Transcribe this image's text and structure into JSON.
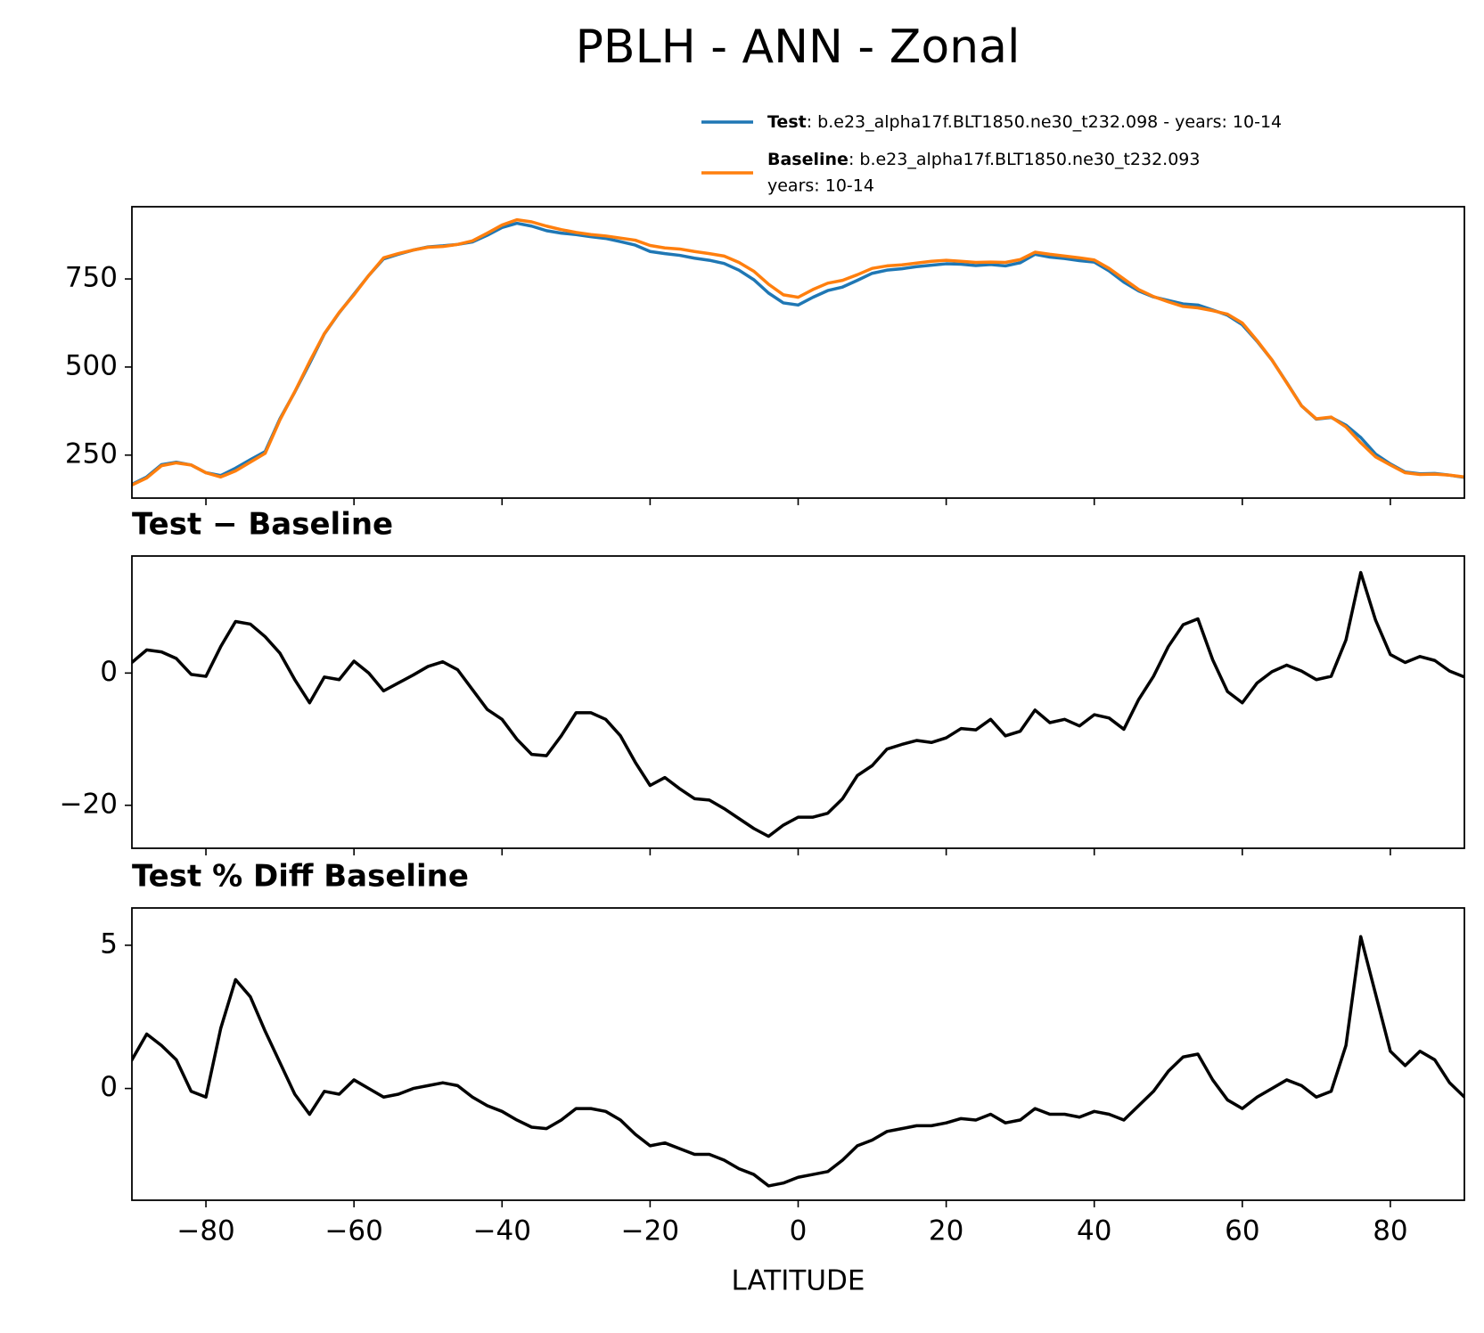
{
  "title": "PBLH - ANN - Zonal",
  "chart_data": [
    {
      "type": "line",
      "x": [
        -90,
        -88,
        -86,
        -84,
        -82,
        -80,
        -78,
        -76,
        -74,
        -72,
        -70,
        -68,
        -66,
        -64,
        -62,
        -60,
        -58,
        -56,
        -54,
        -52,
        -50,
        -48,
        -46,
        -44,
        -42,
        -40,
        -38,
        -36,
        -34,
        -32,
        -30,
        -28,
        -26,
        -24,
        -22,
        -20,
        -18,
        -16,
        -14,
        -12,
        -10,
        -8,
        -6,
        -4,
        -2,
        0,
        2,
        4,
        6,
        8,
        10,
        12,
        14,
        16,
        18,
        20,
        22,
        24,
        26,
        28,
        30,
        32,
        34,
        36,
        38,
        40,
        42,
        44,
        46,
        48,
        50,
        52,
        54,
        56,
        58,
        60,
        62,
        64,
        66,
        68,
        70,
        72,
        74,
        76,
        78,
        80,
        82,
        84,
        86,
        88,
        90
      ],
      "series": [
        {
          "name": "Test",
          "detail": ": b.e23_alpha17f.BLT1850.ne30_t232.098 - years: 10-14",
          "color": "#1f77b4",
          "values": [
            167,
            188,
            223,
            230,
            222,
            200,
            192,
            213,
            237,
            260,
            353,
            429,
            510,
            594,
            654,
            707,
            760,
            807,
            820,
            832,
            841,
            844,
            848,
            855,
            874,
            896,
            908,
            900,
            887,
            880,
            876,
            870,
            865,
            856,
            846,
            828,
            822,
            817,
            809,
            803,
            794,
            775,
            748,
            710,
            682,
            676,
            698,
            717,
            727,
            746,
            766,
            775,
            779,
            785,
            789,
            793,
            792,
            788,
            791,
            787,
            796,
            820,
            812,
            808,
            802,
            798,
            773,
            741,
            716,
            699,
            689,
            679,
            676,
            662,
            647,
            620,
            573,
            520,
            456,
            390,
            352,
            357,
            335,
            300,
            253,
            225,
            202,
            197,
            198,
            193,
            187
          ]
        },
        {
          "name": "Baseline",
          "detail": ": b.e23_alpha17f.BLT1850.ne30_t232.093",
          "detail2": "years: 10-14",
          "color": "#ff7f0e",
          "values": [
            165,
            185,
            220,
            228,
            222,
            200,
            188,
            205,
            230,
            255,
            350,
            430,
            515,
            595,
            655,
            705,
            760,
            810,
            822,
            832,
            840,
            842,
            848,
            858,
            880,
            903,
            918,
            912,
            900,
            890,
            882,
            876,
            872,
            866,
            860,
            845,
            838,
            835,
            828,
            822,
            815,
            797,
            772,
            735,
            705,
            698,
            720,
            738,
            746,
            762,
            780,
            787,
            790,
            795,
            800,
            803,
            800,
            797,
            798,
            797,
            805,
            826,
            820,
            815,
            810,
            804,
            780,
            750,
            720,
            700,
            685,
            672,
            668,
            660,
            650,
            625,
            575,
            520,
            455,
            390,
            353,
            358,
            330,
            285,
            245,
            222,
            200,
            195,
            196,
            193,
            188
          ]
        }
      ],
      "xlim": [
        -90,
        90
      ],
      "xticks": [
        -80,
        -60,
        -40,
        -20,
        0,
        20,
        40,
        60,
        80
      ],
      "show_xticklabels": false,
      "ylim": [
        128,
        955
      ],
      "yticks": [
        250,
        500,
        750
      ]
    },
    {
      "type": "line",
      "title": "Test − Baseline",
      "x": [
        -90,
        -88,
        -86,
        -84,
        -82,
        -80,
        -78,
        -76,
        -74,
        -72,
        -70,
        -68,
        -66,
        -64,
        -62,
        -60,
        -58,
        -56,
        -54,
        -52,
        -50,
        -48,
        -46,
        -44,
        -42,
        -40,
        -38,
        -36,
        -34,
        -32,
        -30,
        -28,
        -26,
        -24,
        -22,
        -20,
        -18,
        -16,
        -14,
        -12,
        -10,
        -8,
        -6,
        -4,
        -2,
        0,
        2,
        4,
        6,
        8,
        10,
        12,
        14,
        16,
        18,
        20,
        22,
        24,
        26,
        28,
        30,
        32,
        34,
        36,
        38,
        40,
        42,
        44,
        46,
        48,
        50,
        52,
        54,
        56,
        58,
        60,
        62,
        64,
        66,
        68,
        70,
        72,
        74,
        76,
        78,
        80,
        82,
        84,
        86,
        88,
        90
      ],
      "series": [
        {
          "color": "#000000",
          "values": [
            1.6,
            3.5,
            3.2,
            2.2,
            -0.2,
            -0.5,
            4.0,
            7.8,
            7.4,
            5.5,
            3.0,
            -1.0,
            -4.5,
            -0.6,
            -1.0,
            1.8,
            0.0,
            -2.7,
            -1.5,
            -0.3,
            1.0,
            1.7,
            0.5,
            -2.5,
            -5.5,
            -7.0,
            -10.0,
            -12.3,
            -12.5,
            -9.5,
            -6.0,
            -6.0,
            -7.0,
            -9.5,
            -13.5,
            -17.0,
            -15.8,
            -17.5,
            -19.0,
            -19.2,
            -20.5,
            -22.0,
            -23.5,
            -24.7,
            -23.0,
            -21.8,
            -21.8,
            -21.2,
            -19.0,
            -15.5,
            -14.0,
            -11.5,
            -10.8,
            -10.2,
            -10.5,
            -9.8,
            -8.4,
            -8.6,
            -7.0,
            -9.5,
            -8.8,
            -5.6,
            -7.5,
            -7.0,
            -8.0,
            -6.3,
            -6.8,
            -8.5,
            -4.0,
            -0.5,
            4.0,
            7.3,
            8.2,
            2.0,
            -2.8,
            -4.5,
            -1.5,
            0.2,
            1.2,
            0.3,
            -1.0,
            -0.5,
            5.0,
            15.2,
            8.0,
            2.8,
            1.6,
            2.5,
            1.9,
            0.3,
            -0.6
          ]
        }
      ],
      "xlim": [
        -90,
        90
      ],
      "xticks": [
        -80,
        -60,
        -40,
        -20,
        0,
        20,
        40,
        60,
        80
      ],
      "show_xticklabels": false,
      "ylim": [
        -26.5,
        17.7
      ],
      "yticks": [
        {
          "value": -20,
          "label": "−20"
        },
        0
      ]
    },
    {
      "type": "line",
      "title": "Test % Diff Baseline",
      "xlabel": "LATITUDE",
      "x": [
        -90,
        -88,
        -86,
        -84,
        -82,
        -80,
        -78,
        -76,
        -74,
        -72,
        -70,
        -68,
        -66,
        -64,
        -62,
        -60,
        -58,
        -56,
        -54,
        -52,
        -50,
        -48,
        -46,
        -44,
        -42,
        -40,
        -38,
        -36,
        -34,
        -32,
        -30,
        -28,
        -26,
        -24,
        -22,
        -20,
        -18,
        -16,
        -14,
        -12,
        -10,
        -8,
        -6,
        -4,
        -2,
        0,
        2,
        4,
        6,
        8,
        10,
        12,
        14,
        16,
        18,
        20,
        22,
        24,
        26,
        28,
        30,
        32,
        34,
        36,
        38,
        40,
        42,
        44,
        46,
        48,
        50,
        52,
        54,
        56,
        58,
        60,
        62,
        64,
        66,
        68,
        70,
        72,
        74,
        76,
        78,
        80,
        82,
        84,
        86,
        88,
        90
      ],
      "series": [
        {
          "color": "#000000",
          "values": [
            1.0,
            1.9,
            1.5,
            1.0,
            -0.1,
            -0.3,
            2.1,
            3.8,
            3.2,
            2.0,
            0.9,
            -0.2,
            -0.9,
            -0.1,
            -0.2,
            0.3,
            0.0,
            -0.3,
            -0.2,
            0.0,
            0.1,
            0.2,
            0.1,
            -0.3,
            -0.6,
            -0.8,
            -1.1,
            -1.35,
            -1.4,
            -1.1,
            -0.7,
            -0.7,
            -0.8,
            -1.1,
            -1.6,
            -2.0,
            -1.9,
            -2.1,
            -2.3,
            -2.3,
            -2.5,
            -2.8,
            -3.0,
            -3.4,
            -3.3,
            -3.1,
            -3.0,
            -2.9,
            -2.5,
            -2.0,
            -1.8,
            -1.5,
            -1.4,
            -1.3,
            -1.3,
            -1.2,
            -1.05,
            -1.1,
            -0.9,
            -1.2,
            -1.1,
            -0.7,
            -0.9,
            -0.9,
            -1.0,
            -0.8,
            -0.9,
            -1.1,
            -0.6,
            -0.1,
            0.6,
            1.1,
            1.2,
            0.3,
            -0.4,
            -0.7,
            -0.3,
            0.0,
            0.3,
            0.1,
            -0.3,
            -0.1,
            1.5,
            5.3,
            3.3,
            1.3,
            0.8,
            1.3,
            1.0,
            0.2,
            -0.3
          ]
        }
      ],
      "xlim": [
        -90,
        90
      ],
      "xticks": [
        {
          "value": -80,
          "label": "−80"
        },
        {
          "value": -60,
          "label": "−60"
        },
        {
          "value": -40,
          "label": "−40"
        },
        {
          "value": -20,
          "label": "−20"
        },
        0,
        20,
        40,
        60,
        80
      ],
      "show_xticklabels": true,
      "ylim": [
        -3.9,
        6.3
      ],
      "yticks": [
        0,
        5
      ]
    }
  ]
}
